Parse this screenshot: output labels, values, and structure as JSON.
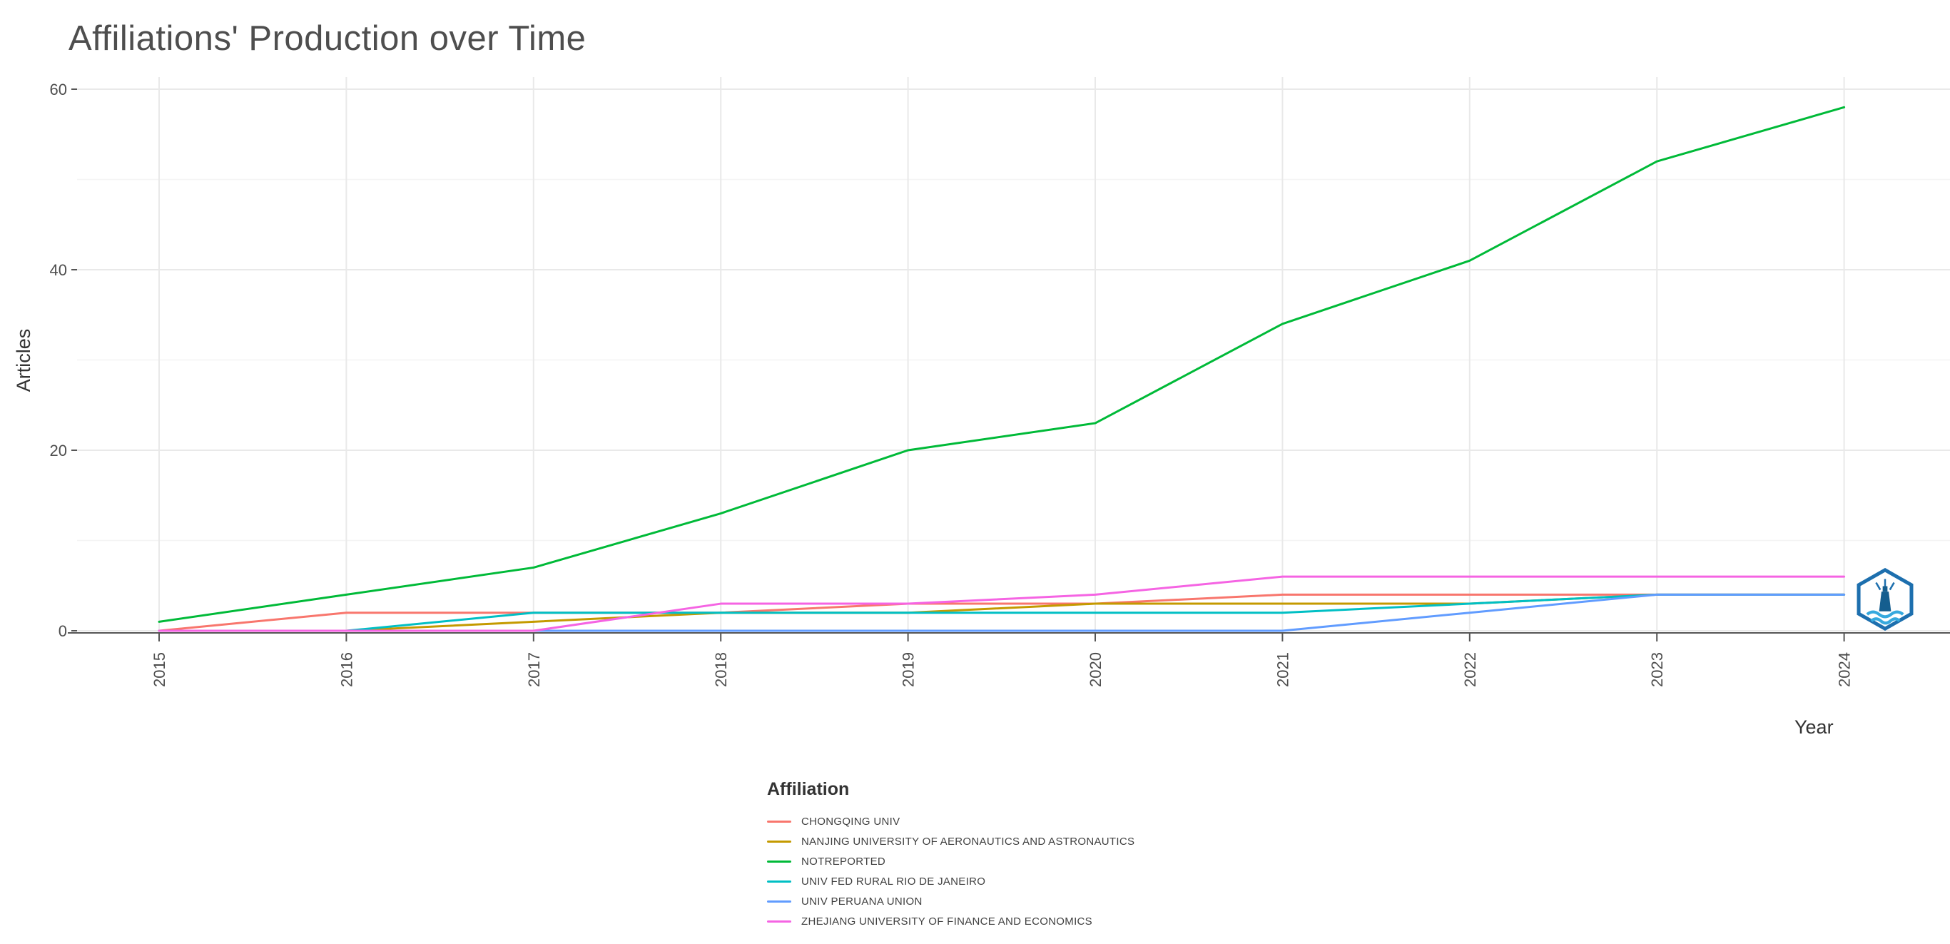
{
  "chart_data": {
    "type": "line",
    "title": "Affiliations' Production over Time",
    "xlabel": "Year",
    "ylabel": "Articles",
    "legend_title": "Affiliation",
    "legend_position": "bottom-left",
    "grid": true,
    "x": [
      2015,
      2016,
      2017,
      2018,
      2019,
      2020,
      2021,
      2022,
      2023,
      2024
    ],
    "yticks": [
      0,
      20,
      40,
      60
    ],
    "ylim": [
      0,
      60
    ],
    "series": [
      {
        "name": "CHONGQING UNIV",
        "color": "#F8766D",
        "values": [
          0,
          2,
          2,
          2,
          3,
          3,
          4,
          4,
          4,
          4
        ]
      },
      {
        "name": "NANJING UNIVERSITY OF AERONAUTICS AND ASTRONAUTICS",
        "color": "#C49A00",
        "values": [
          0,
          0,
          1,
          2,
          2,
          3,
          3,
          3,
          4,
          4
        ]
      },
      {
        "name": "NOTREPORTED",
        "color": "#00BA38",
        "values": [
          1,
          4,
          7,
          13,
          20,
          23,
          34,
          41,
          52,
          58
        ]
      },
      {
        "name": "UNIV FED RURAL RIO DE JANEIRO",
        "color": "#00BFC4",
        "values": [
          0,
          0,
          2,
          2,
          2,
          2,
          2,
          3,
          4,
          4
        ]
      },
      {
        "name": "UNIV PERUANA UNION",
        "color": "#619CFF",
        "values": [
          0,
          0,
          0,
          0,
          0,
          0,
          0,
          2,
          4,
          4
        ]
      },
      {
        "name": "ZHEJIANG UNIVERSITY OF FINANCE AND ECONOMICS",
        "color": "#F564E3",
        "values": [
          0,
          0,
          0,
          3,
          3,
          4,
          6,
          6,
          6,
          6
        ]
      }
    ]
  },
  "icons": {
    "watermark": "hexagon-lighthouse-badge"
  }
}
